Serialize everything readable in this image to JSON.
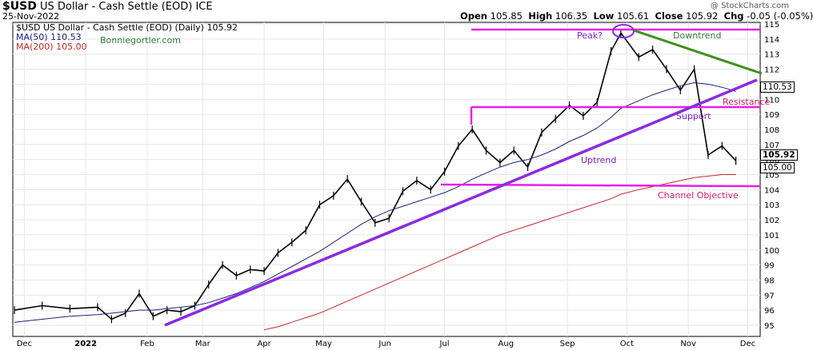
{
  "header": {
    "symbol": "$USD",
    "name": "US Dollar - Cash Settle (EOD)",
    "exchange": "ICE",
    "date": "25-Nov-2022",
    "copyright": "@ StockCharts.com",
    "open_label": "Open",
    "open": "105.85",
    "high_label": "High",
    "high": "106.35",
    "low_label": "Low",
    "low": "105.61",
    "close_label": "Close",
    "close": "105.92",
    "chg_label": "Chg",
    "chg": "-0.05 (-0.05%)"
  },
  "legend": {
    "main": "$USD US Dollar - Cash Settle (EOD) (Daily) 105.92",
    "ma50": "MA(50) 110.53",
    "ma200": "MA(200) 105.00",
    "watermark": "Bonniegortler.com"
  },
  "annotations": {
    "peak": "Peak?",
    "downtrend": "Downtrend",
    "resistance": "Resistance",
    "support": "Support",
    "uptrend": "Uptrend",
    "channel_objective": "Channel Objective"
  },
  "price_boxes": {
    "ma50": "110.53",
    "close": "105.92",
    "ma200": "105.00"
  },
  "colors": {
    "price": "#000000",
    "ma50": "#1a237e",
    "ma200": "#c62828",
    "uptrend_line": "#8a2be2",
    "channel_lines": "#e81ee8",
    "downtrend_line": "#3f8f1f"
  },
  "chart_data": {
    "type": "line",
    "title": "$USD US Dollar - Cash Settle (EOD) ICE",
    "xlabel": "",
    "ylabel": "",
    "ylim": [
      94.5,
      115
    ],
    "y_ticks": [
      95,
      96,
      97,
      98,
      99,
      100,
      101,
      102,
      103,
      104,
      105,
      106,
      107,
      108,
      109,
      110,
      111,
      112,
      113,
      114,
      115
    ],
    "x_tick_labels": [
      "Dec",
      "2022",
      "Feb",
      "Mar",
      "Apr",
      "May",
      "Jun",
      "Jul",
      "Aug",
      "Sep",
      "Oct",
      "Nov",
      "Dec"
    ],
    "x": [
      "2021-11-26",
      "2021-12-10",
      "2021-12-24",
      "2022-01-07",
      "2022-01-14",
      "2022-01-21",
      "2022-01-28",
      "2022-02-04",
      "2022-02-11",
      "2022-02-18",
      "2022-02-25",
      "2022-03-04",
      "2022-03-11",
      "2022-03-18",
      "2022-03-25",
      "2022-04-01",
      "2022-04-08",
      "2022-04-15",
      "2022-04-22",
      "2022-04-29",
      "2022-05-06",
      "2022-05-13",
      "2022-05-20",
      "2022-05-27",
      "2022-06-03",
      "2022-06-10",
      "2022-06-17",
      "2022-06-24",
      "2022-07-01",
      "2022-07-08",
      "2022-07-15",
      "2022-07-22",
      "2022-07-29",
      "2022-08-05",
      "2022-08-12",
      "2022-08-19",
      "2022-08-26",
      "2022-09-02",
      "2022-09-09",
      "2022-09-16",
      "2022-09-23",
      "2022-09-28",
      "2022-10-07",
      "2022-10-14",
      "2022-10-21",
      "2022-10-28",
      "2022-11-04",
      "2022-11-11",
      "2022-11-18",
      "2022-11-25"
    ],
    "series": [
      {
        "name": "$USD",
        "values": [
          96.0,
          96.3,
          96.1,
          96.2,
          95.4,
          95.8,
          97.1,
          95.6,
          96.0,
          95.9,
          96.3,
          97.7,
          99.0,
          98.3,
          98.7,
          98.6,
          99.8,
          100.5,
          101.3,
          103.0,
          103.6,
          104.7,
          103.2,
          101.8,
          102.1,
          103.9,
          104.6,
          104.0,
          105.2,
          106.9,
          108.0,
          106.6,
          105.8,
          106.6,
          105.5,
          107.8,
          108.7,
          109.6,
          108.9,
          109.8,
          113.2,
          114.4,
          112.8,
          113.3,
          112.0,
          110.6,
          112.0,
          106.3,
          106.9,
          105.92
        ]
      },
      {
        "name": "MA(50)",
        "values": [
          95.2,
          95.4,
          95.6,
          95.7,
          95.8,
          95.9,
          96.0,
          96.0,
          96.1,
          96.2,
          96.3,
          96.5,
          96.8,
          97.1,
          97.5,
          97.9,
          98.4,
          98.9,
          99.4,
          99.9,
          100.5,
          101.1,
          101.7,
          102.2,
          102.6,
          102.9,
          103.2,
          103.5,
          103.8,
          104.2,
          104.7,
          105.1,
          105.5,
          105.8,
          106.0,
          106.3,
          106.7,
          107.2,
          107.6,
          108.1,
          108.8,
          109.4,
          109.9,
          110.3,
          110.6,
          110.9,
          111.1,
          111.0,
          110.8,
          110.53
        ]
      },
      {
        "name": "MA(200)",
        "values": [
          null,
          null,
          null,
          null,
          null,
          null,
          null,
          null,
          null,
          null,
          null,
          null,
          null,
          null,
          null,
          94.7,
          94.9,
          95.2,
          95.5,
          95.8,
          96.2,
          96.6,
          97.0,
          97.4,
          97.8,
          98.2,
          98.6,
          99.0,
          99.4,
          99.8,
          100.2,
          100.6,
          101.0,
          101.3,
          101.6,
          101.9,
          102.2,
          102.5,
          102.8,
          103.1,
          103.4,
          103.7,
          104.0,
          104.2,
          104.4,
          104.6,
          104.8,
          104.9,
          105.0,
          105.0
        ]
      }
    ]
  }
}
